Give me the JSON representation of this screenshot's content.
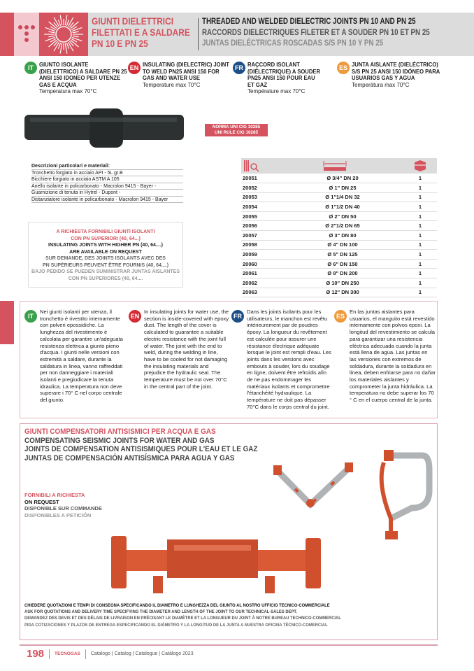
{
  "header": {
    "title_lines": [
      "GIUNTI DIELETTRICI",
      "FILETTATI E A SALDARE",
      "PN 10 E PN 25"
    ],
    "subtitle_en": "THREADED AND WELDED DIELECTRIC JOINTS PN 10 AND PN 25",
    "subtitle_fr": "RACCORDS DIELECTRIQUES FILETER ET A SOUDER PN 10 ET PN 25",
    "subtitle_es": "JUNTAS DIELÉCTRICAS ROSCADAS S/S PN 10 Y PN 25"
  },
  "languages": [
    {
      "code": "IT",
      "color": "#3aa04a",
      "title": "GIUNTO ISOLANTE (DIELETTRICO) A SALDARE PN 25 ANSI 150 IDONEO PER UTENZE GAS E ACQUA",
      "temp": "Temperatura max 70°C"
    },
    {
      "code": "EN",
      "color": "#d42b35",
      "title": "INSULATING (DIELECTRIC) JOINT TO WELD PN25 ANSI 150 FOR GAS AND WATER USE",
      "temp": "Temperature max 70°C"
    },
    {
      "code": "FR",
      "color": "#1d4f86",
      "title": "RAÇCORD ISOLANT (DIÉLECTRIQUE) A SOUDER PN25 ANSI 150 POUR EAU ET GAZ",
      "temp": "Température max 70°C"
    },
    {
      "code": "ES",
      "color": "#ee9a3a",
      "title": "JUNTA AISLANTE (DIELÉCTRICO) S/S PN 25 ANSI 150 IDÓNEO PARA USUARIOS GAS Y AGUA",
      "temp": "Temperátura max 70°C"
    }
  ],
  "norma": [
    "NORMA UNI CIG 10285",
    "UNI RULE CIG 10285"
  ],
  "materials": {
    "heading": "Descrizioni particolari e materiali:",
    "items": [
      "Tronchetto forgiato in acciaio API - 5L gr.B",
      "Bicchiere forgiato in acciaio ASTM A 105",
      "Anello isolante in policarbonato - Macrolon 9415 - Bayer -",
      "Guarnizione di tenuta in Hytrel - Dupont -",
      "Distanziatore isolante in policarbonato - Macrolon 9415 - Bayer"
    ]
  },
  "request": {
    "it": [
      "A RICHIESTA FORNIBILI GIUNTI ISOLANTI",
      "CON PN SUPERIORI (40, 64...)"
    ],
    "en": [
      "INSULATING JOINTS WITH HIGHER PN (40, 64....)",
      "ARE AVAILABLE ON REQUEST"
    ],
    "fr": [
      "SUR DEMANDE, DES JOINTS ISOLANTS AVEC DES",
      "PN SUPÉRIEURS PEUVENT ÊTRE FOURNIS (40, 64....)"
    ],
    "es": [
      "BAJO PEDIDO SE PUEDEN SUMINISTRAR JUNTAS AISLANTES",
      "CON PN SUPERIORES (40, 64...."
    ]
  },
  "table": {
    "header_icons": [
      "barcode-search-icon",
      "measure-length-icon",
      "box-quantity-icon"
    ],
    "rows": [
      [
        "20051",
        "Ø 3/4\" DN 20",
        "1"
      ],
      [
        "20052",
        "Ø 1\" DN 25",
        "1"
      ],
      [
        "20053",
        "Ø 1\"1/4 DN 32",
        "1"
      ],
      [
        "20054",
        "Ø 1\"1/2 DN 40",
        "1"
      ],
      [
        "20055",
        "Ø 2\" DN 50",
        "1"
      ],
      [
        "20056",
        "Ø 2\"1/2 DN 65",
        "1"
      ],
      [
        "20057",
        "Ø 3\" DN 80",
        "1"
      ],
      [
        "20058",
        "Ø 4\" DN 100",
        "1"
      ],
      [
        "20059",
        "Ø 5\" DN 125",
        "1"
      ],
      [
        "20060",
        "Ø 6\" DN 150",
        "1"
      ],
      [
        "20061",
        "Ø 8\" DN 200",
        "1"
      ],
      [
        "20062",
        "Ø 10\" DN 250",
        "1"
      ],
      [
        "20063",
        "Ø 12\" DN 300",
        "1"
      ]
    ]
  },
  "notes": [
    {
      "code": "IT",
      "text": "Nei giunti isolanti per utenza, il tronchetto è rivestito internamente con polveri epossidiche. La lunghezza del rivestimento è calcolata per garantire un'adeguata resistenza elettrica a giunto pieno d'acqua. I giunti nelle versioni con estremità a saldare, durante la saldatura in linea, vanno raffreddati per non danneggiare i materiali isolanti e pregiudicare la tenuta idraulica. La temperatura non deve superare i 70° C nel corpo centrale del giunto."
    },
    {
      "code": "EN",
      "text": "In insulating joints for water use, the section is inside-covered with epoxy dust. The length of the cover is calculated to guarantee a suitable electric resistance with the joint full of water. The joint with the end to weld, during the welding in line, have to be cooled for not damaging the insulating materials and prejudice the hydraulic seal. The temperature must be not over 70°C in the central part of the joint."
    },
    {
      "code": "FR",
      "text": "Dans les joints isolants pour les utilisateurs, le manchon est revêtu intérieurement par de poudres époxy. La longueur du revêtement est calculée pour assurer une résistance électrique adéquate lorsque le joint est rempli d'eau. Les joints dans les versions avec embouts à souder, lors du soudage en ligne, doivent être refroidis afin de ne pas endommager les matériaux isolants et compromettre l'étanchéité hydraulique. La température ne doit pas dépasser 70°C dans le corps central du joint."
    },
    {
      "code": "ES",
      "text": "En las juntas aislantes para usuarios, el manguito está revestido internamente con polvos epoxi. La longitud del revestimiento se calcula para garantizar una resistencia eléctrica adecuada cuando la junta está llena de agua. Las juntas en las versiones con extremos de soldadura, durante la soldadura en línea, deben enfriarse para no dañar los materiales aislantes y comprometer la junta hidráulica. La temperatura no debe superar los 70 ° C en el cuerpo central de la junta."
    }
  ],
  "seismic": {
    "titles": [
      "GIUNTI COMPENSATORI ANTISISMICI PER ACQUA E GAS",
      "COMPENSATING SEISMIC JOINTS FOR WATER AND GAS",
      "JOINTS DE COMPENSATION ANTISISMIQUES POUR L'EAU ET LE GAZ",
      "JUNTAS DE COMPENSACIÓN ANTISÍSMICA PARA AGUA Y GAS"
    ],
    "availability": [
      "FORNIBILI A RICHIESTA",
      "ON REQUEST",
      "DISPONIBLE SUR COMMANDE",
      "DISPONIBLES A PETICIÓN"
    ],
    "contact": [
      "CHIEDERE QUOTAZIONI E TEMPI DI CONSEGNA SPECIFICANDO IL DIAMETRO E LUNGHEZZA DEL GIUNTO AL NOSTRO UFFICIO TECNICO-COMMERCIALE",
      "ASK FOR QUOTATIONS AND DELIVERY TIME SPECIFYING THE DIAMETER AND LENGTH OF THE JOINT TO OUR TECHNICAL-SALES DEPT.",
      "DEMANDEZ DES DEVIS ET DES DÉLAIS DE LIVRAISON EN PRÉCISANT LE DIAMÈTRE ET LA LONGUEUR DU JOINT À NOTRE BUREAU TECHNICO-COMMERCIAL",
      "PIDA COTIZACIONES Y PLAZOS DE ENTREGA ESPECIFICANDO EL DIÁMETRO Y LA LONGITUD DE LA JUNTA A NUESTRA OFICINA TÉCNICO-COMERCIAL"
    ]
  },
  "footer": {
    "page": "198",
    "brand": "TECNOGAS",
    "catalog": "Catalogo | Catalog | Catalogue | Catálogo 2023"
  },
  "colors": {
    "accent": "#d5525f",
    "gray_band": "#dcdcdc"
  }
}
